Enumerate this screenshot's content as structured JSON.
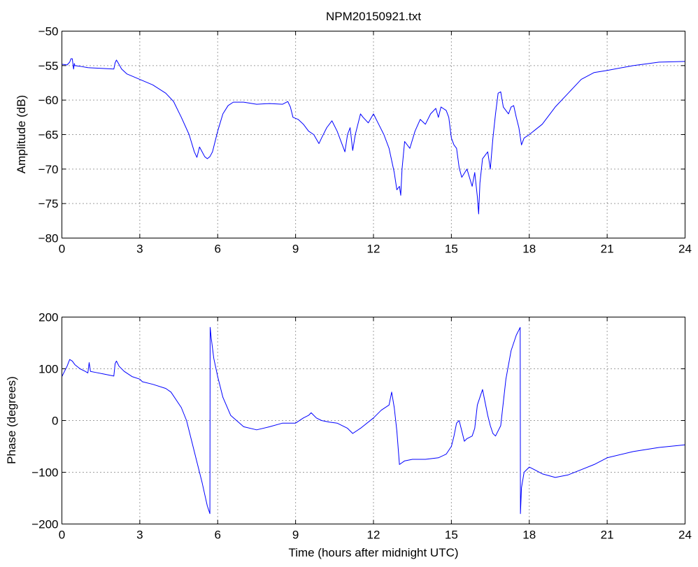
{
  "chart_data": [
    {
      "type": "line",
      "title": "NPM20150921.txt",
      "xlabel": "",
      "ylabel": "Amplitude (dB)",
      "xlim": [
        0,
        24
      ],
      "ylim": [
        -80,
        -50
      ],
      "xticks": [
        0,
        3,
        6,
        9,
        12,
        15,
        18,
        21,
        24
      ],
      "yticks": [
        -50,
        -55,
        -60,
        -65,
        -70,
        -75,
        -80
      ],
      "xtick_labels": [
        "0",
        "3",
        "6",
        "9",
        "12",
        "15",
        "18",
        "21",
        "24"
      ],
      "ytick_labels": [
        "−50",
        "−55",
        "−60",
        "−65",
        "−70",
        "−75",
        "−80"
      ],
      "grid": true,
      "color": "#0000ff",
      "series": [
        {
          "x": [
            0.0,
            0.2,
            0.3,
            0.35,
            0.4,
            0.42,
            0.45,
            0.48,
            0.5,
            0.7,
            1.0,
            1.5,
            2.0,
            2.05,
            2.1,
            2.15,
            2.3,
            2.5,
            3.0,
            3.5,
            4.0,
            4.3,
            4.6,
            4.9,
            5.1,
            5.2,
            5.3,
            5.4,
            5.5,
            5.6,
            5.7,
            5.8,
            6.0,
            6.2,
            6.4,
            6.6,
            7.0,
            7.5,
            8.0,
            8.5,
            8.7,
            8.8,
            8.9,
            9.1,
            9.3,
            9.5,
            9.7,
            9.9,
            10.0,
            10.2,
            10.4,
            10.6,
            10.8,
            10.9,
            11.0,
            11.1,
            11.2,
            11.3,
            11.5,
            11.6,
            11.8,
            12.0,
            12.2,
            12.4,
            12.6,
            12.8,
            12.9,
            13.0,
            13.05,
            13.1,
            13.2,
            13.4,
            13.6,
            13.8,
            14.0,
            14.2,
            14.4,
            14.5,
            14.6,
            14.8,
            14.9,
            15.0,
            15.1,
            15.2,
            15.3,
            15.4,
            15.6,
            15.8,
            15.9,
            16.0,
            16.05,
            16.1,
            16.2,
            16.4,
            16.5,
            16.6,
            16.7,
            16.8,
            16.9,
            17.0,
            17.2,
            17.3,
            17.4,
            17.5,
            17.6,
            17.7,
            17.8,
            18.0,
            18.5,
            19.0,
            19.5,
            20.0,
            20.5,
            21.0,
            22.0,
            23.0,
            24.0
          ],
          "y": [
            -54.8,
            -54.9,
            -54.5,
            -54.0,
            -54.0,
            -54.6,
            -55.5,
            -54.7,
            -55.0,
            -55.1,
            -55.3,
            -55.4,
            -55.5,
            -54.6,
            -54.2,
            -54.5,
            -55.5,
            -56.2,
            -57.0,
            -57.8,
            -59.0,
            -60.2,
            -62.5,
            -65.0,
            -67.5,
            -68.3,
            -66.8,
            -67.5,
            -68.2,
            -68.5,
            -68.2,
            -67.5,
            -64.5,
            -62.0,
            -60.8,
            -60.3,
            -60.3,
            -60.6,
            -60.5,
            -60.6,
            -60.2,
            -61.0,
            -62.5,
            -62.8,
            -63.5,
            -64.5,
            -65.0,
            -66.3,
            -65.5,
            -64.0,
            -63.0,
            -64.5,
            -66.5,
            -67.5,
            -65.0,
            -64.0,
            -67.3,
            -65.0,
            -62.0,
            -62.5,
            -63.3,
            -62.0,
            -63.5,
            -65.0,
            -67.0,
            -70.5,
            -73.0,
            -72.5,
            -73.8,
            -70.0,
            -66.0,
            -67.0,
            -64.5,
            -62.8,
            -63.5,
            -62.0,
            -61.2,
            -62.5,
            -61.0,
            -61.5,
            -62.5,
            -65.5,
            -66.5,
            -67.0,
            -69.8,
            -71.2,
            -70.0,
            -72.5,
            -70.5,
            -74.0,
            -76.5,
            -72.0,
            -68.5,
            -67.5,
            -70.0,
            -65.5,
            -62.0,
            -59.0,
            -58.8,
            -61.0,
            -62.0,
            -61.0,
            -60.8,
            -62.5,
            -64.0,
            -66.5,
            -65.5,
            -65.0,
            -63.5,
            -61.0,
            -59.0,
            -57.0,
            -56.0,
            -55.7,
            -55.0,
            -54.5,
            -54.4
          ]
        }
      ]
    },
    {
      "type": "line",
      "title": "",
      "xlabel": "Time (hours after midnight UTC)",
      "ylabel": "Phase (degrees)",
      "xlim": [
        0,
        24
      ],
      "ylim": [
        -200,
        200
      ],
      "xticks": [
        0,
        3,
        6,
        9,
        12,
        15,
        18,
        21,
        24
      ],
      "yticks": [
        200,
        100,
        0,
        -100,
        -200
      ],
      "xtick_labels": [
        "0",
        "3",
        "6",
        "9",
        "12",
        "15",
        "18",
        "21",
        "24"
      ],
      "ytick_labels": [
        "200",
        "100",
        "0",
        "−100",
        "−200"
      ],
      "grid": true,
      "color": "#0000ff",
      "series": [
        {
          "x": [
            0.0,
            0.1,
            0.2,
            0.3,
            0.4,
            0.5,
            0.7,
            0.9,
            1.0,
            1.05,
            1.1,
            1.3,
            1.6,
            1.9,
            2.0,
            2.05,
            2.1,
            2.2,
            2.4,
            2.7,
            3.0,
            3.1,
            3.5,
            4.0,
            4.2,
            4.4,
            4.6,
            4.8,
            5.0,
            5.2,
            5.4,
            5.6,
            5.7,
            5.71,
            5.75,
            5.85,
            6.0,
            6.2,
            6.5,
            7.0,
            7.5,
            8.0,
            8.5,
            9.0,
            9.3,
            9.5,
            9.6,
            9.8,
            10.0,
            10.3,
            10.6,
            11.0,
            11.2,
            11.5,
            12.0,
            12.3,
            12.6,
            12.7,
            12.8,
            12.9,
            13.0,
            13.2,
            13.5,
            14.0,
            14.5,
            14.8,
            15.0,
            15.1,
            15.2,
            15.3,
            15.4,
            15.5,
            15.6,
            15.8,
            15.9,
            16.0,
            16.1,
            16.2,
            16.3,
            16.4,
            16.5,
            16.6,
            16.7,
            16.9,
            17.1,
            17.3,
            17.5,
            17.65,
            17.66,
            17.7,
            17.8,
            18.0,
            18.2,
            18.5,
            19.0,
            19.5,
            20.0,
            20.5,
            21.0,
            22.0,
            23.0,
            24.0
          ],
          "y": [
            85,
            95,
            105,
            118,
            115,
            108,
            100,
            95,
            92,
            112,
            95,
            93,
            90,
            87,
            86,
            110,
            115,
            105,
            95,
            85,
            80,
            75,
            70,
            62,
            55,
            40,
            25,
            0,
            -40,
            -80,
            -120,
            -165,
            -180,
            180,
            160,
            120,
            85,
            45,
            10,
            -12,
            -18,
            -12,
            -5,
            -5,
            5,
            10,
            15,
            5,
            0,
            -3,
            -5,
            -15,
            -25,
            -15,
            5,
            20,
            30,
            55,
            25,
            -20,
            -85,
            -78,
            -75,
            -75,
            -72,
            -65,
            -50,
            -30,
            -5,
            0,
            -20,
            -40,
            -35,
            -30,
            -15,
            30,
            45,
            60,
            35,
            10,
            -10,
            -25,
            -30,
            -10,
            80,
            135,
            165,
            180,
            -180,
            -130,
            -100,
            -90,
            -95,
            -103,
            -110,
            -105,
            -95,
            -85,
            -72,
            -60,
            -52,
            -47
          ]
        }
      ]
    }
  ]
}
